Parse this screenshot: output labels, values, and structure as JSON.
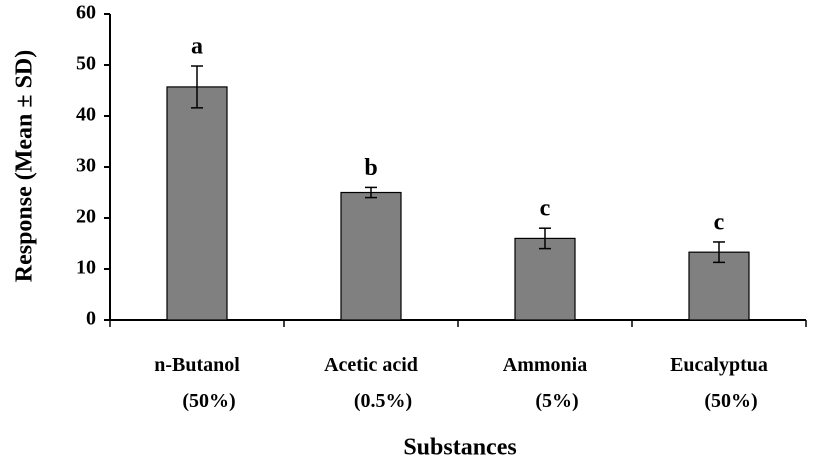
{
  "chart_data": {
    "type": "bar",
    "y_label": "Response (Mean ± SD)",
    "x_label": "Substances",
    "categories": [
      "n-Butanol\n(50%)",
      "Acetic acid\n(0.5%)",
      "Ammonia\n(5%)",
      "Eucalyptua\n(50%)"
    ],
    "values": [
      45.7,
      25,
      16,
      13.3
    ],
    "errors": [
      4.1,
      1,
      2,
      2
    ],
    "annotations": [
      "a",
      "b",
      "c",
      "c"
    ],
    "color": "#808080",
    "ylim": [
      0,
      60
    ],
    "yticks": [
      0,
      10,
      20,
      30,
      40,
      50,
      60
    ],
    "grid": false
  }
}
